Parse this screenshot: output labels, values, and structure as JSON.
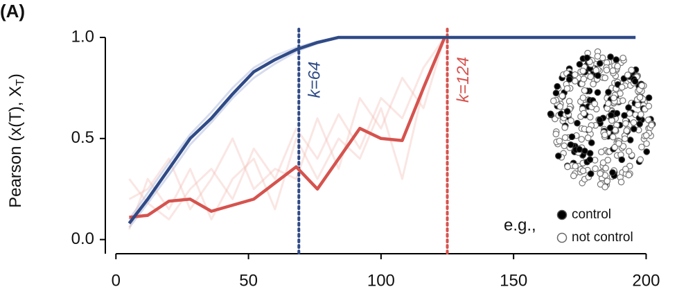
{
  "chart_data": {
    "type": "line",
    "panel_label": "(A)",
    "ylabel": "Pearson (x(T), X",
    "ylabel_sub": "T",
    "ylabel_end": ")",
    "x": [
      5,
      12,
      20,
      28,
      36,
      44,
      52,
      60,
      68,
      76,
      84,
      92,
      100,
      108,
      116,
      124,
      196
    ],
    "series": [
      {
        "color": "#2f4a86",
        "values": [
          0.08,
          0.2,
          0.35,
          0.5,
          0.6,
          0.72,
          0.83,
          0.89,
          0.94,
          0.975,
          1.0,
          1.0,
          1.0,
          1.0,
          1.0,
          1.0,
          1.0
        ]
      },
      {
        "color": "#d6534e",
        "values": [
          0.11,
          0.12,
          0.19,
          0.2,
          0.14,
          0.17,
          0.2,
          0.28,
          0.36,
          0.25,
          0.4,
          0.55,
          0.5,
          0.49,
          0.75,
          1.0,
          null
        ]
      }
    ],
    "faint_series": [
      {
        "color": "#8a9ccc",
        "values": [
          0.1,
          0.23,
          0.38,
          0.52,
          0.63,
          0.75,
          0.85,
          0.91,
          0.95,
          0.98,
          1.0,
          1.0,
          1.0,
          1.0,
          1.0,
          1.0,
          1.0
        ]
      },
      {
        "color": "#8a9ccc",
        "values": [
          0.06,
          0.18,
          0.32,
          0.47,
          0.58,
          0.7,
          0.8,
          0.87,
          0.93,
          0.97,
          1.0,
          1.0,
          1.0,
          1.0,
          1.0,
          1.0,
          1.0
        ]
      },
      {
        "color": "#f2b7ae",
        "values": [
          0.3,
          0.18,
          0.1,
          0.25,
          0.35,
          0.2,
          0.45,
          0.3,
          0.55,
          0.4,
          0.62,
          0.45,
          0.7,
          0.6,
          0.85,
          1.0,
          null
        ]
      },
      {
        "color": "#f2b7ae",
        "values": [
          0.2,
          0.25,
          0.4,
          0.15,
          0.3,
          0.5,
          0.25,
          0.35,
          0.3,
          0.6,
          0.35,
          0.7,
          0.55,
          0.8,
          0.65,
          1.0,
          null
        ]
      },
      {
        "color": "#f2b7ae",
        "values": [
          0.05,
          0.3,
          0.15,
          0.35,
          0.1,
          0.3,
          0.4,
          0.15,
          0.5,
          0.3,
          0.5,
          0.4,
          0.65,
          0.3,
          0.75,
          1.0,
          null
        ]
      }
    ],
    "annotations": [
      {
        "x": 69,
        "label": "k=64",
        "color": "#2f4a86"
      },
      {
        "x": 125,
        "label": "k=124",
        "color": "#d6534e"
      }
    ],
    "legend": {
      "prefix": "e.g.,",
      "entries": [
        "control",
        "not control"
      ]
    },
    "xlim": [
      -4,
      207.2
    ],
    "ylim": [
      -0.07,
      1.048
    ],
    "xticks": [
      0,
      50,
      100,
      150,
      200
    ],
    "yticks": [
      {
        "value": 0,
        "label": "0.0"
      },
      0.5,
      {
        "value": 1,
        "label": "1.0"
      }
    ]
  }
}
